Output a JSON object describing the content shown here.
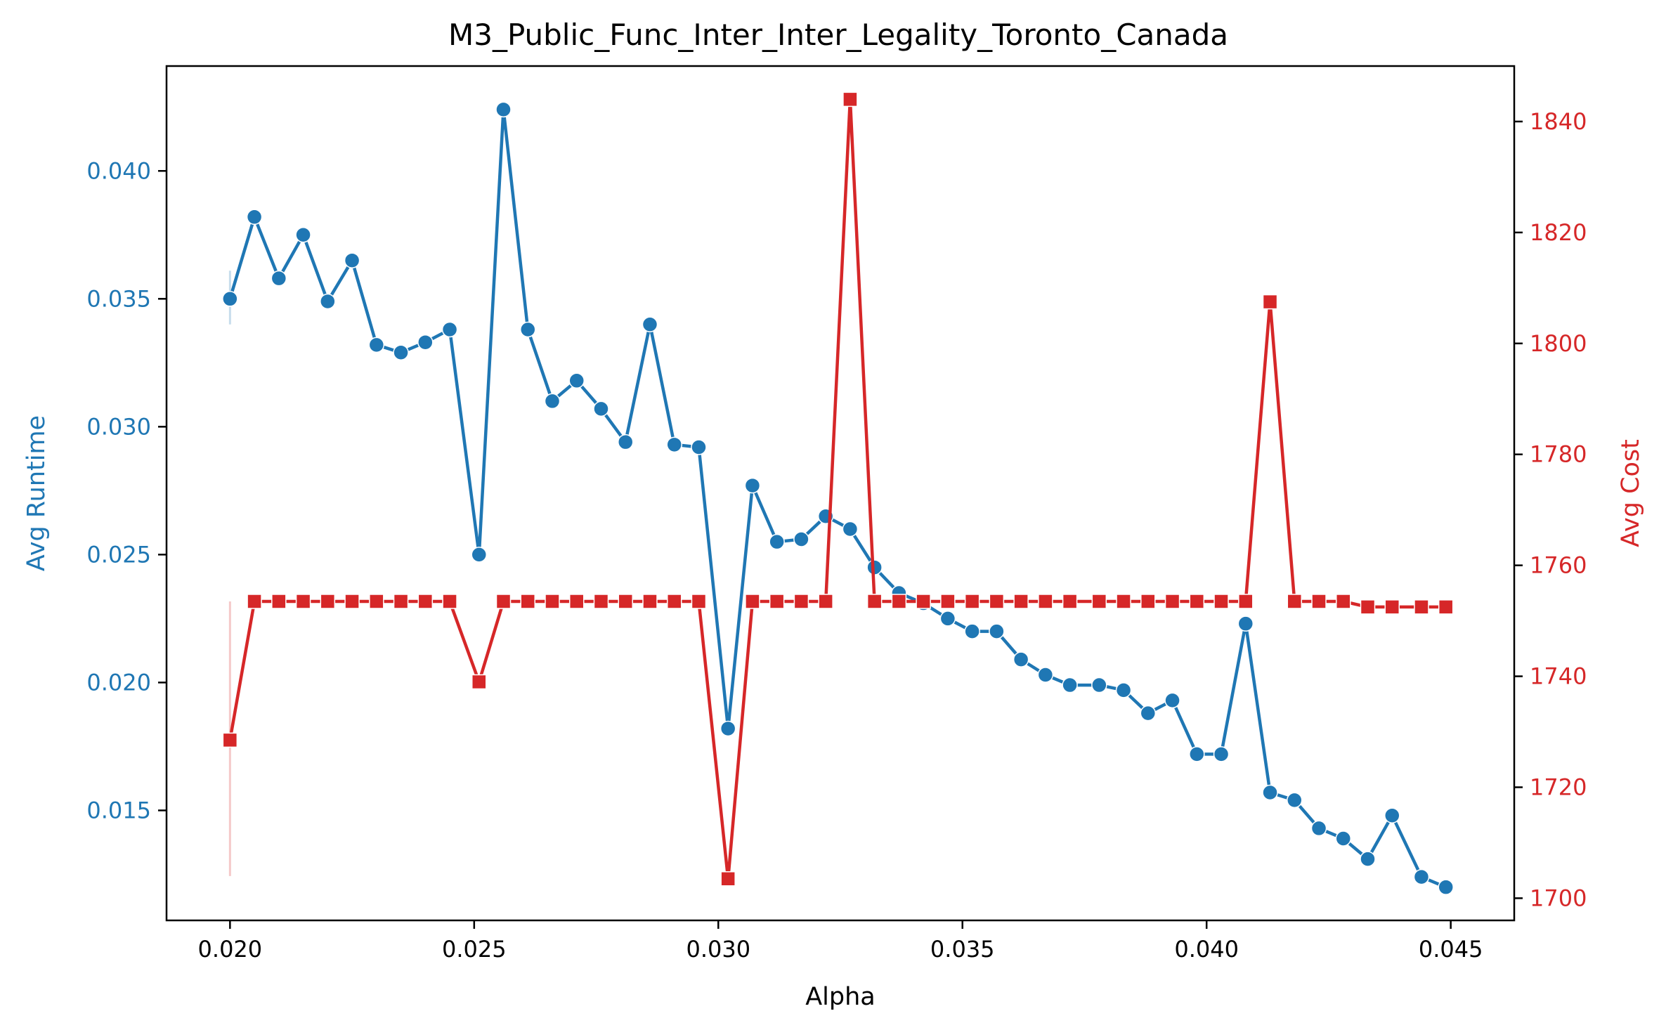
{
  "colors": {
    "runtime": "#1f77b4",
    "cost": "#d62728",
    "axes": "#000000",
    "background": "#ffffff"
  },
  "chart_data": {
    "type": "line",
    "title": "M3_Public_Func_Inter_Inter_Legality_Toronto_Canada",
    "xlabel": "Alpha",
    "ylabel_left": "Avg Runtime",
    "ylabel_right": "Avg Cost",
    "xlim": [
      0.0187,
      0.0463
    ],
    "ylim_left": [
      0.0107,
      0.0441
    ],
    "ylim_right": [
      1696,
      1850
    ],
    "x_ticks": [
      "0.020",
      "0.025",
      "0.030",
      "0.035",
      "0.040",
      "0.045"
    ],
    "y_ticks_left": [
      "0.015",
      "0.020",
      "0.025",
      "0.030",
      "0.035",
      "0.040"
    ],
    "y_ticks_right": [
      "1700",
      "1720",
      "1740",
      "1760",
      "1780",
      "1800",
      "1820",
      "1840"
    ],
    "grid": false,
    "x": [
      0.02,
      0.0205,
      0.021,
      0.0215,
      0.022,
      0.0225,
      0.023,
      0.0235,
      0.024,
      0.0245,
      0.0251,
      0.0256,
      0.0261,
      0.0266,
      0.0271,
      0.0276,
      0.0281,
      0.0286,
      0.0291,
      0.0296,
      0.0302,
      0.0307,
      0.0312,
      0.0317,
      0.0322,
      0.0327,
      0.0332,
      0.0337,
      0.0342,
      0.0347,
      0.0352,
      0.0357,
      0.0362,
      0.0367,
      0.0372,
      0.0378,
      0.0383,
      0.0388,
      0.0393,
      0.0398,
      0.0403,
      0.0408,
      0.0413,
      0.0418,
      0.0423,
      0.0428,
      0.0433,
      0.0438,
      0.0444,
      0.0449
    ],
    "series": [
      {
        "name": "Avg Runtime",
        "axis": "left",
        "marker": "circle",
        "values": [
          0.035,
          0.0382,
          0.0358,
          0.0375,
          0.0349,
          0.0365,
          0.0332,
          0.0329,
          0.0333,
          0.0338,
          0.025,
          0.0424,
          0.0338,
          0.031,
          0.0318,
          0.0307,
          0.0294,
          0.034,
          0.0293,
          0.0292,
          0.0182,
          0.0277,
          0.0255,
          0.0256,
          0.0265,
          0.026,
          0.0245,
          0.0235,
          0.0231,
          0.0225,
          0.022,
          0.022,
          0.0209,
          0.0203,
          0.0199,
          0.0199,
          0.0197,
          0.0188,
          0.0193,
          0.0172,
          0.0172,
          0.0223,
          0.0157,
          0.0154,
          0.0143,
          0.0139,
          0.0131,
          0.0148,
          0.0124,
          0.012
        ],
        "error_band": [
          {
            "index": 0,
            "low": 0.034,
            "high": 0.0361
          }
        ]
      },
      {
        "name": "Avg Cost",
        "axis": "right",
        "marker": "square",
        "values": [
          1728.5,
          1753.5,
          1753.5,
          1753.5,
          1753.5,
          1753.5,
          1753.5,
          1753.5,
          1753.5,
          1753.5,
          1739.0,
          1753.5,
          1753.5,
          1753.5,
          1753.5,
          1753.5,
          1753.5,
          1753.5,
          1753.5,
          1753.5,
          1703.5,
          1753.5,
          1753.5,
          1753.5,
          1753.5,
          1844.0,
          1753.5,
          1753.5,
          1753.5,
          1753.5,
          1753.5,
          1753.5,
          1753.5,
          1753.5,
          1753.5,
          1753.5,
          1753.5,
          1753.5,
          1753.5,
          1753.5,
          1753.5,
          1753.5,
          1807.5,
          1753.5,
          1753.5,
          1753.5,
          1752.5,
          1752.5,
          1752.5,
          1752.5
        ],
        "error_band": [
          {
            "index": 0,
            "low": 1704.0,
            "high": 1753.5
          }
        ]
      }
    ]
  }
}
